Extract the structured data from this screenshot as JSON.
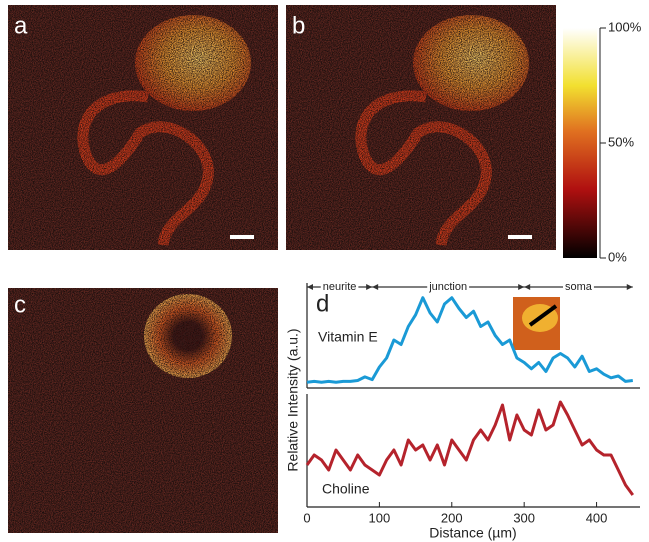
{
  "figure": {
    "panels": [
      "a",
      "b",
      "c",
      "d"
    ],
    "colorbar": {
      "lim": [
        0,
        100
      ],
      "ticks": [
        {
          "value": 0,
          "label": "0%"
        },
        {
          "value": 50,
          "label": "50%"
        },
        {
          "value": 100,
          "label": "100%"
        }
      ]
    },
    "ylabel": "Relative Intensity (a.u.)",
    "xlabel": "Distance (µm)"
  },
  "chart_data": [
    {
      "type": "line",
      "xlim": [
        0,
        460
      ],
      "ylim": [
        0,
        10
      ],
      "regions": [
        {
          "label": "neurite",
          "range": [
            0,
            90
          ]
        },
        {
          "label": "junction",
          "range": [
            90,
            300
          ]
        },
        {
          "label": "soma",
          "range": [
            300,
            450
          ]
        }
      ],
      "x": [
        0,
        10,
        20,
        30,
        40,
        50,
        60,
        70,
        80,
        90,
        100,
        110,
        120,
        130,
        140,
        150,
        160,
        170,
        180,
        190,
        200,
        210,
        220,
        230,
        240,
        250,
        260,
        270,
        280,
        290,
        300,
        310,
        320,
        330,
        340,
        350,
        360,
        370,
        380,
        390,
        400,
        410,
        420,
        430,
        440,
        450
      ],
      "series": [
        {
          "name": "Vitamin E",
          "color": "#1a9ad6",
          "values": [
            0.3,
            0.4,
            0.3,
            0.4,
            0.3,
            0.4,
            0.4,
            0.5,
            0.9,
            0.6,
            2.0,
            3.0,
            5.0,
            4.5,
            6.5,
            7.8,
            9.7,
            8.0,
            7.0,
            9.0,
            9.7,
            8.5,
            7.5,
            8.2,
            6.5,
            7.0,
            5.5,
            4.5,
            5.0,
            3.0,
            2.5,
            1.8,
            2.5,
            1.5,
            3.0,
            3.5,
            3.0,
            2.0,
            3.2,
            1.5,
            1.8,
            1.2,
            0.8,
            1.0,
            0.4,
            0.5
          ]
        }
      ]
    },
    {
      "type": "line",
      "xlim": [
        0,
        460
      ],
      "ylim": [
        0,
        10
      ],
      "xticks": [
        0,
        100,
        200,
        300,
        400
      ],
      "x": [
        0,
        10,
        20,
        30,
        40,
        50,
        60,
        70,
        80,
        90,
        100,
        110,
        120,
        130,
        140,
        150,
        160,
        170,
        180,
        190,
        200,
        210,
        220,
        230,
        240,
        250,
        260,
        270,
        280,
        290,
        300,
        310,
        320,
        330,
        340,
        350,
        360,
        370,
        380,
        390,
        400,
        410,
        420,
        430,
        440,
        450
      ],
      "series": [
        {
          "name": "Choline",
          "color": "#b5232c",
          "values": [
            3.5,
            4.5,
            4.0,
            3.0,
            5.0,
            4.0,
            3.0,
            4.5,
            3.5,
            3.0,
            2.5,
            4.0,
            5.0,
            3.5,
            6.0,
            5.0,
            5.5,
            4.0,
            5.5,
            3.5,
            6.0,
            5.0,
            4.0,
            6.0,
            7.0,
            6.0,
            7.5,
            9.5,
            6.0,
            8.5,
            7.0,
            6.5,
            9.0,
            7.0,
            7.5,
            9.8,
            8.5,
            7.0,
            5.5,
            6.0,
            5.0,
            4.5,
            4.5,
            3.0,
            1.5,
            0.5
          ]
        }
      ]
    }
  ]
}
